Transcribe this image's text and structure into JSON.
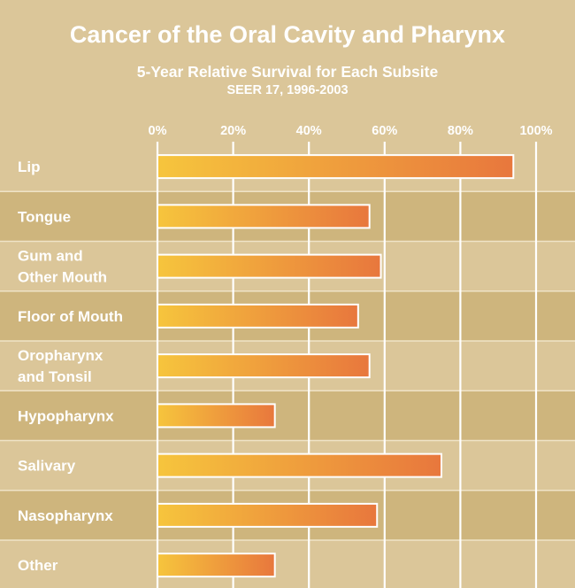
{
  "chart_data": {
    "type": "bar",
    "orientation": "horizontal",
    "title": "Cancer of the Oral Cavity and Pharynx",
    "subtitle": "5-Year Relative Survival for Each Subsite",
    "subtitle2": "SEER 17, 1996-2003",
    "xlabel": "",
    "ylabel": "",
    "xlim": [
      0,
      100
    ],
    "x_ticks": [
      "0%",
      "20%",
      "40%",
      "60%",
      "80%",
      "100%"
    ],
    "grid": true,
    "categories": [
      [
        "Lip"
      ],
      [
        "Tongue"
      ],
      [
        "Gum and",
        "Other Mouth"
      ],
      [
        "Floor of Mouth"
      ],
      [
        "Oropharynx",
        "and Tonsil"
      ],
      [
        "Hypopharynx"
      ],
      [
        "Salivary"
      ],
      [
        "Nasopharynx"
      ],
      [
        "Other"
      ]
    ],
    "values": [
      94,
      56,
      59,
      53,
      56,
      31,
      75,
      58,
      31
    ]
  },
  "colors": {
    "background": "#dbc699",
    "band_dark": "#ceb57d",
    "band_light": "#dbc699",
    "band_divider": "#efe3c7",
    "grid": "#ffffff",
    "bar_start": "#f6c53d",
    "bar_end": "#e8773d",
    "text": "#ffffff"
  }
}
